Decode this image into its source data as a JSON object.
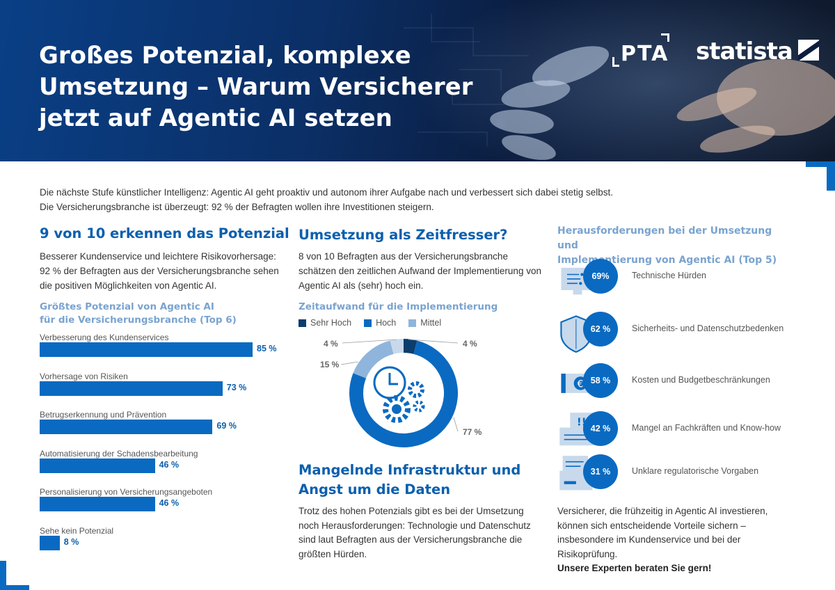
{
  "header": {
    "title_lines": [
      "Großes Potenzial, komplexe",
      "Umsetzung – Warum Versicherer",
      "jetzt auf Agentic AI setzen"
    ],
    "logo_pta": "PTA",
    "logo_statista": "statista"
  },
  "intro": {
    "line1": "Die nächste Stufe künstlicher Intelligenz: Agentic AI geht proaktiv und autonom ihrer Aufgabe nach und verbessert sich dabei stetig selbst.",
    "line2": "Die Versicherungsbranche ist überzeugt: 92 % der Befragten wollen ihre Investitionen steigern."
  },
  "col1": {
    "title": "9 von 10 erkennen das Potenzial",
    "text": "Besserer Kundenservice und leichtere Risikovorhersage: 92 % der Befragten aus der Versicherungsbranche sehen die positiven Möglichkeiten von Agentic AI.",
    "subtitle_line1": "Größtes Potenzial von Agentic AI",
    "subtitle_line2": "für die Versicherungsbranche (Top 6)"
  },
  "col2": {
    "title": "Umsetzung als Zeitfresser?",
    "text": "8 von 10 Befragten aus der Versicherungsbranche schätzen den zeitlichen Aufwand der Implementierung von Agentic AI als (sehr) hoch ein.",
    "subtitle": "Zeitaufwand für die Implementierung",
    "title2_line1": "Mangelnde Infrastruktur und",
    "title2_line2": "Angst um die Daten",
    "text2": "Trotz des hohen Potenzials gibt es bei der Umsetzung noch Herausforderungen: Technologie und Datenschutz sind laut Befragten aus der Versicherungsbranche die größten Hürden."
  },
  "col3": {
    "subtitle_line1": "Herausforderungen bei der Umsetzung und",
    "subtitle_line2": "Implementierung von Agentic AI (Top 5)",
    "text": "Versicherer, die frühzeitig in Agentic AI investieren, können sich entscheidende Vorteile sichern – insbesondere im Kundenservice und bei der Risikoprüfung.",
    "cta": "Unsere Experten beraten Sie gern!"
  },
  "colors": {
    "primary": "#0a6ac1",
    "dark": "#0b3d6e",
    "light": "#8fb5dc",
    "heading": "#0a5fae",
    "subheading": "#7aa3cf"
  },
  "chart_data": [
    {
      "type": "bar",
      "orientation": "horizontal",
      "title": "Größtes Potenzial von Agentic AI für die Versicherungsbranche (Top 6)",
      "categories": [
        "Verbesserung des Kundenservices",
        "Vorhersage von Risiken",
        "Betrugserkennung und Prävention",
        "Automatisierung der Schadensbearbeitung",
        "Personalisierung von Versicherungsangeboten",
        "Sehe kein Potenzial"
      ],
      "values": [
        85,
        73,
        69,
        46,
        46,
        8
      ],
      "labels": [
        "85 %",
        "73 %",
        "69 %",
        "46 %",
        "46 %",
        "8 %"
      ],
      "unit": "%"
    },
    {
      "type": "pie",
      "variant": "donut",
      "title": "Zeitaufwand für die Implementierung",
      "legend": [
        "Sehr Hoch",
        "Hoch",
        "Mittel"
      ],
      "slices": [
        {
          "name": "Sehr Hoch",
          "value": 4,
          "label": "4 %",
          "color": "#0b3d6e"
        },
        {
          "name": "Hoch",
          "value": 77,
          "label": "77 %",
          "color": "#0a6ac1"
        },
        {
          "name": "Mittel",
          "value": 15,
          "label": "15 %",
          "color": "#8fb5dc"
        },
        {
          "name": "",
          "value": 4,
          "label": "4 %",
          "color": "#c8d9ec"
        }
      ]
    },
    {
      "type": "bar",
      "title": "Herausforderungen bei der Umsetzung und Implementierung von Agentic AI (Top 5)",
      "categories": [
        "Technische Hürden",
        "Sicherheits- und Datenschutzbedenken",
        "Kosten und Budgetbeschränkungen",
        "Mangel an Fachkräften und Know-how",
        "Unklare regulatorische Vorgaben"
      ],
      "values": [
        69,
        62,
        58,
        42,
        31
      ],
      "labels": [
        "69%",
        "62 %",
        "58 %",
        "42 %",
        "31 %"
      ],
      "icons": [
        "monitor-icon",
        "shield-icon",
        "euro-bill-icon",
        "document-warning-icon",
        "document-stack-icon"
      ],
      "unit": "%"
    }
  ]
}
